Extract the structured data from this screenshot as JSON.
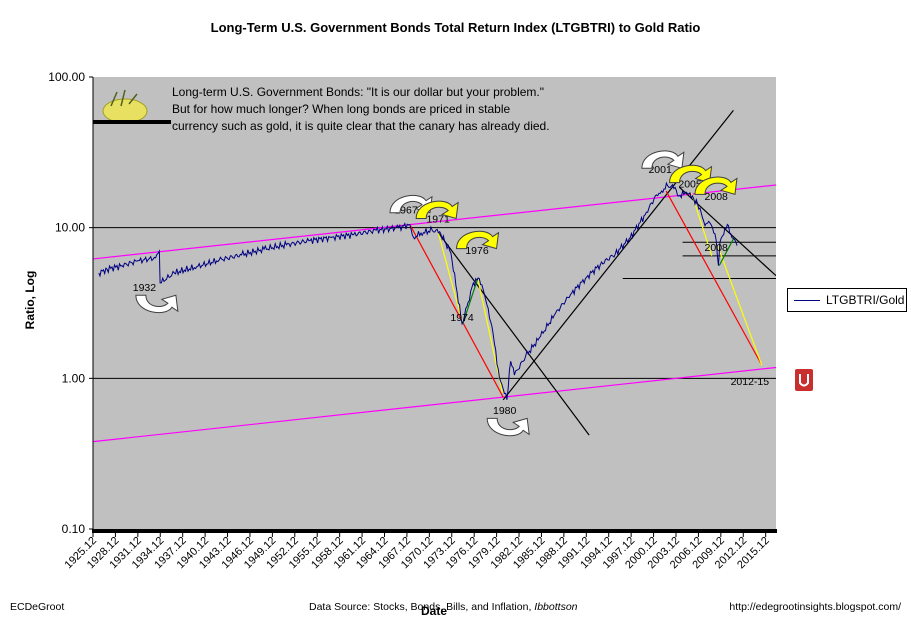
{
  "title": "Long-Term U.S. Government Bonds Total Return Index (LTGBTRI) to Gold Ratio",
  "annotation_text": "Long-term U.S. Government Bonds: \"It is our dollar but your problem.\"  But for how much longer?  When long bonds are priced in stable currency such as gold, it is quite clear that the canary has already died.",
  "footer": {
    "left": "ECDeGroot",
    "center_prefix": "Data Source:  Stocks, Bonds, Bills, and Inflation, ",
    "center_italic": "Ibbottson",
    "right": "http://edegrootinsights.blogspot.com/"
  },
  "colors": {
    "plot_bg": "#c0c0c0",
    "series": "#000080",
    "channel": "#ff00ff",
    "down_trend": "#ff0000",
    "projection": "#ffff00",
    "recovery": "#008000",
    "trend": "#000000",
    "arrow": "#ffff00"
  },
  "chart_data": {
    "type": "line",
    "title": "Long-Term U.S. Government Bonds Total Return Index (LTGBTRI) to Gold Ratio",
    "xlabel": "Date",
    "ylabel": "Ratio, Log",
    "y_scale": "log",
    "ylim": [
      0.1,
      100
    ],
    "xlim": [
      1925.12,
      2016.5
    ],
    "y_ticks": [
      "0.10",
      "1.00",
      "10.00",
      "100.00"
    ],
    "x_ticks": [
      "1925.12",
      "1928.12",
      "1931.12",
      "1934.12",
      "1937.12",
      "1940.12",
      "1943.12",
      "1946.12",
      "1949.12",
      "1952.12",
      "1955.12",
      "1958.12",
      "1961.12",
      "1964.12",
      "1967.12",
      "1970.12",
      "1973.12",
      "1976.12",
      "1979.12",
      "1982.12",
      "1985.12",
      "1988.12",
      "1991.12",
      "1994.12",
      "1997.12",
      "2000.12",
      "2003.12",
      "2006.12",
      "2009.12",
      "2012.12",
      "2015.12"
    ],
    "legend": "right",
    "series": [
      {
        "name": "LTGBTRI/Gold",
        "x": [
          1925.9,
          1927,
          1929,
          1931,
          1933.5,
          1934,
          1934.1,
          1936,
          1939,
          1942,
          1945,
          1948,
          1951,
          1954,
          1957,
          1960,
          1963,
          1966,
          1967.5,
          1968,
          1969,
          1970.5,
          1971.5,
          1973,
          1974.5,
          1975.3,
          1976,
          1976.8,
          1977.5,
          1978.5,
          1979.5,
          1980,
          1980.5,
          1981,
          1981.5,
          1983,
          1985,
          1987,
          1989,
          1991,
          1993,
          1995,
          1997,
          1999,
          2000.5,
          2001.2,
          2002,
          2003,
          2003.5,
          2004.5,
          2005,
          2005.5,
          2006,
          2006.5,
          2007,
          2007.5,
          2008,
          2008.5,
          2008.8,
          2009,
          2009.5,
          2010,
          2010.3,
          2010.6,
          2011,
          2011.3
        ],
        "values": [
          5.0,
          5.3,
          5.6,
          6.0,
          6.3,
          7.0,
          4.3,
          5.0,
          5.5,
          6.1,
          6.6,
          7.2,
          7.7,
          8.2,
          8.6,
          9.0,
          9.6,
          10.0,
          10.5,
          8.6,
          9.2,
          9.6,
          9.4,
          6.8,
          2.3,
          3.2,
          4.3,
          4.6,
          3.6,
          2.2,
          1.0,
          0.85,
          0.72,
          1.3,
          1.05,
          1.4,
          1.9,
          2.7,
          3.6,
          4.6,
          5.7,
          6.7,
          8.6,
          12.2,
          16.5,
          17.5,
          19.0,
          18.5,
          16.2,
          17.2,
          17.0,
          15.5,
          14.5,
          12.5,
          10.3,
          11.0,
          10.0,
          8.2,
          5.6,
          8.0,
          9.0,
          10.5,
          9.2,
          8.6,
          8.3,
          7.6
        ]
      }
    ],
    "upper_channel": {
      "x": [
        1925.12,
        2016.5
      ],
      "y": [
        6.2,
        19.2
      ]
    },
    "lower_channel": {
      "x": [
        1925.12,
        2016.5
      ],
      "y": [
        0.38,
        1.18
      ]
    },
    "horizontal_levels": [
      {
        "y": 10.0,
        "x": [
          1925.12,
          2016.5
        ]
      },
      {
        "y": 1.0,
        "x": [
          1925.12,
          2016.5
        ]
      },
      {
        "y": 8.0,
        "x": [
          2004,
          2016.5
        ]
      },
      {
        "y": 6.5,
        "x": [
          2004,
          2016.5
        ]
      },
      {
        "y": 4.6,
        "x": [
          1996,
          2016.5
        ]
      }
    ],
    "trend_lines": [
      {
        "color": "black",
        "x": [
          1971.3,
          1991.5
        ],
        "y": [
          9.3,
          0.42
        ]
      },
      {
        "color": "black",
        "x": [
          1980.0,
          2010.8
        ],
        "y": [
          0.72,
          60
        ]
      },
      {
        "color": "black",
        "x": [
          2003.6,
          2016.5
        ],
        "y": [
          18.5,
          4.8
        ]
      },
      {
        "color": "red",
        "x": [
          1967.6,
          1980.0
        ],
        "y": [
          10.3,
          0.75
        ]
      },
      {
        "color": "red",
        "x": [
          2001.8,
          2014.5
        ],
        "y": [
          17.5,
          1.25
        ]
      },
      {
        "color": "yellow",
        "x": [
          1971.3,
          1974.6
        ],
        "y": [
          9.3,
          2.3
        ]
      },
      {
        "color": "yellow",
        "x": [
          1976.6,
          1979.9
        ],
        "y": [
          4.6,
          0.8
        ]
      },
      {
        "color": "yellow",
        "x": [
          2005.2,
          2007.9
        ],
        "y": [
          17.0,
          6.5
        ]
      },
      {
        "color": "yellow",
        "x": [
          2008.6,
          2014.6
        ],
        "y": [
          7.8,
          1.22
        ]
      },
      {
        "color": "green",
        "x": [
          1974.6,
          1976.6
        ],
        "y": [
          2.3,
          4.6
        ]
      },
      {
        "color": "green",
        "x": [
          2008.9,
          2010.9
        ],
        "y": [
          5.6,
          8.6
        ]
      }
    ],
    "annotations": [
      {
        "text": "1932",
        "x": 1932.0,
        "y": 3.8
      },
      {
        "text": "1967",
        "x": 1967.0,
        "y": 12.4
      },
      {
        "text": "1971",
        "x": 1971.3,
        "y": 10.8
      },
      {
        "text": "1976",
        "x": 1976.5,
        "y": 6.7
      },
      {
        "text": "1974",
        "x": 1974.5,
        "y": 2.4
      },
      {
        "text": "1980",
        "x": 1980.2,
        "y": 0.58
      },
      {
        "text": "2001",
        "x": 2001.0,
        "y": 23.0
      },
      {
        "text": "2005",
        "x": 2005.0,
        "y": 18.5
      },
      {
        "text": "2008",
        "x": 2008.5,
        "y": 15.3
      },
      {
        "text": "2008",
        "x": 2008.5,
        "y": 7.0
      },
      {
        "text": "2012-15",
        "x": 2013.0,
        "y": 0.9
      }
    ]
  }
}
